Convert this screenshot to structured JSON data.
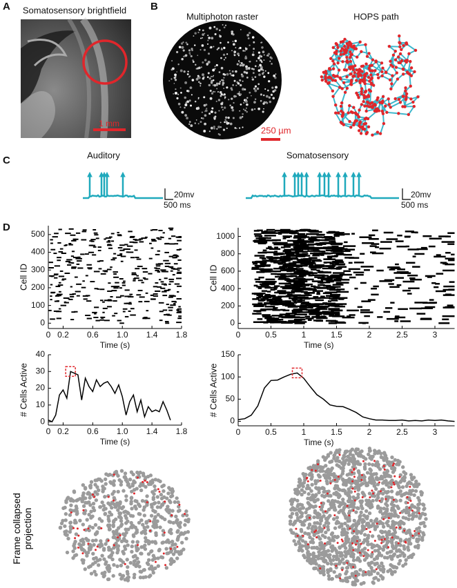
{
  "panel_a": {
    "label": "A",
    "title": "Somatosensory brightfield",
    "scale_bar": "1 mm"
  },
  "panel_b": {
    "label": "B",
    "left_title": "Multiphoton raster",
    "right_title": "HOPS path",
    "scale_bar": "250 µm"
  },
  "panel_c": {
    "label": "C",
    "left": {
      "title": "Auditory",
      "scale_v": "20mv",
      "scale_t": "500 ms"
    },
    "right": {
      "title": "Somatosensory",
      "scale_v": "20mv",
      "scale_t": "500 ms"
    }
  },
  "panel_d": {
    "label": "D",
    "projection_label": "Frame collapsed projection"
  },
  "chart_data": [
    {
      "type": "raster",
      "xlabel": "Time (s)",
      "ylabel": "Cell ID",
      "xlim": [
        0,
        1.8
      ],
      "xticks": [
        0,
        0.2,
        0.6,
        {
          "value": 1,
          "label": "1.0"
        },
        1.4,
        1.8
      ],
      "ylim": [
        -30,
        550
      ],
      "yticks": [
        0,
        100,
        200,
        300,
        400,
        500
      ]
    },
    {
      "type": "raster",
      "xlabel": "Time (s)",
      "ylabel": "Cell ID",
      "xlim": [
        0,
        3.3
      ],
      "xticks": [
        0,
        0.5,
        1,
        1.5,
        2,
        2.5,
        3
      ],
      "ylim": [
        -60,
        1100
      ],
      "yticks": [
        0,
        200,
        400,
        600,
        800,
        1000
      ]
    },
    {
      "type": "line",
      "xlabel": "Time (s)",
      "ylabel": "# Cells Active",
      "color": "#000000",
      "xlim": [
        0,
        1.8
      ],
      "xticks": [
        0,
        0.2,
        0.6,
        {
          "value": 1,
          "label": "1.0"
        },
        1.4,
        1.8
      ],
      "ylim": [
        -2,
        40
      ],
      "yticks": [
        0,
        10,
        20,
        30,
        40
      ],
      "x": [
        0,
        0.05,
        0.1,
        0.15,
        0.2,
        0.25,
        0.3,
        0.35,
        0.4,
        0.45,
        0.5,
        0.55,
        0.6,
        0.65,
        0.7,
        0.75,
        0.8,
        0.85,
        0.9,
        0.95,
        1.0,
        1.05,
        1.1,
        1.15,
        1.2,
        1.25,
        1.3,
        1.35,
        1.4,
        1.45,
        1.5,
        1.55,
        1.6,
        1.65
      ],
      "values": [
        1,
        0,
        4,
        16,
        19,
        14,
        30,
        29,
        28,
        13,
        26,
        21,
        18,
        25,
        21,
        23,
        24,
        21,
        17,
        22,
        15,
        4,
        12,
        16,
        6,
        13,
        3,
        9,
        6,
        7,
        6,
        12,
        7,
        1
      ]
    },
    {
      "type": "line",
      "xlabel": "Time (s)",
      "ylabel": "# Cells Active",
      "color": "#000000",
      "xlim": [
        0,
        3.3
      ],
      "xticks": [
        0,
        0.5,
        1,
        1.5,
        2,
        2.5,
        3
      ],
      "ylim": [
        -10,
        150
      ],
      "yticks": [
        0,
        50,
        100,
        150
      ],
      "x": [
        0,
        0.1,
        0.2,
        0.3,
        0.4,
        0.5,
        0.6,
        0.7,
        0.8,
        0.9,
        1.0,
        1.1,
        1.2,
        1.3,
        1.4,
        1.5,
        1.6,
        1.7,
        1.8,
        1.9,
        2.0,
        2.1,
        2.2,
        2.3,
        2.4,
        2.5,
        2.6,
        2.7,
        2.8,
        2.9,
        3.0,
        3.1,
        3.2,
        3.3
      ],
      "values": [
        4,
        6,
        14,
        35,
        75,
        92,
        93,
        100,
        106,
        109,
        97,
        78,
        60,
        50,
        37,
        34,
        33,
        27,
        20,
        10,
        6,
        3,
        3,
        2,
        2,
        3,
        1,
        2,
        1,
        3,
        2,
        3,
        1,
        0
      ]
    }
  ]
}
